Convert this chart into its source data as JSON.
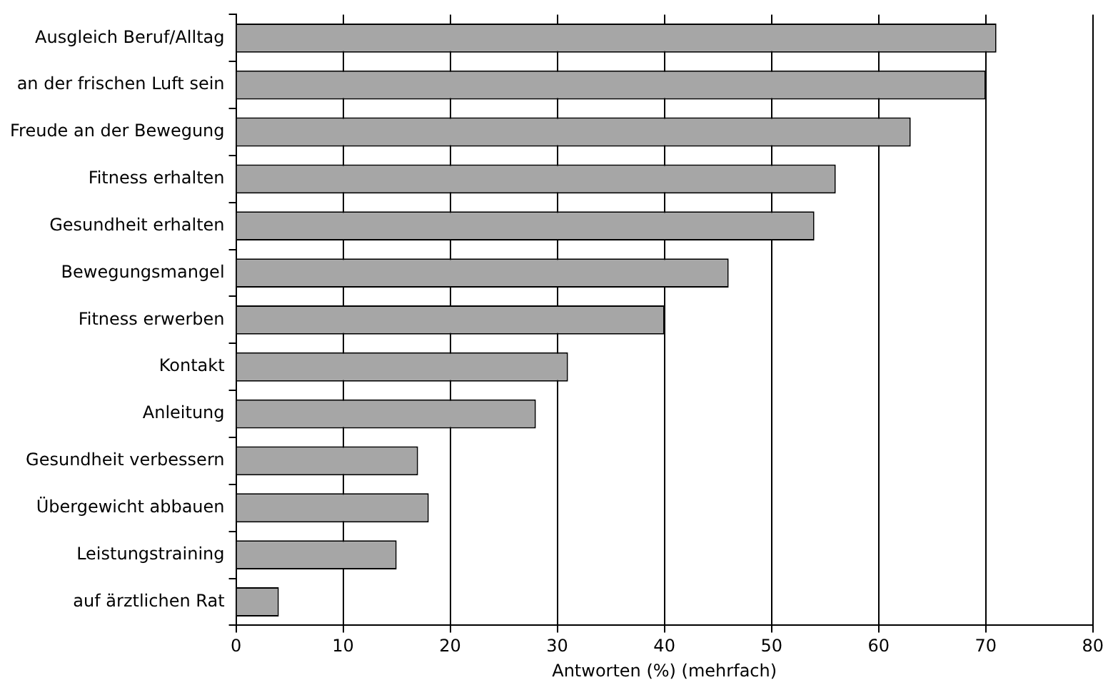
{
  "chart_data": {
    "type": "bar",
    "orientation": "horizontal",
    "xlabel": "Antworten (%) (mehrfach)",
    "categories": [
      "Ausgleich Beruf/Alltag",
      "an der frischen Luft sein",
      "Freude an der Bewegung",
      "Fitness erhalten",
      "Gesundheit erhalten",
      "Bewegungsmangel",
      "Fitness erwerben",
      "Kontakt",
      "Anleitung",
      "Gesundheit verbessern",
      "Übergewicht abbauen",
      "Leistungstraining",
      "auf ärztlichen Rat"
    ],
    "values": [
      71,
      70,
      63,
      56,
      54,
      46,
      40,
      31,
      28,
      17,
      18,
      15,
      4
    ],
    "color": "#a6a6a6",
    "xlim": [
      0,
      80
    ],
    "xticks": [
      0,
      10,
      20,
      30,
      40,
      50,
      60,
      70,
      80
    ],
    "grid": "x",
    "legend": false
  }
}
